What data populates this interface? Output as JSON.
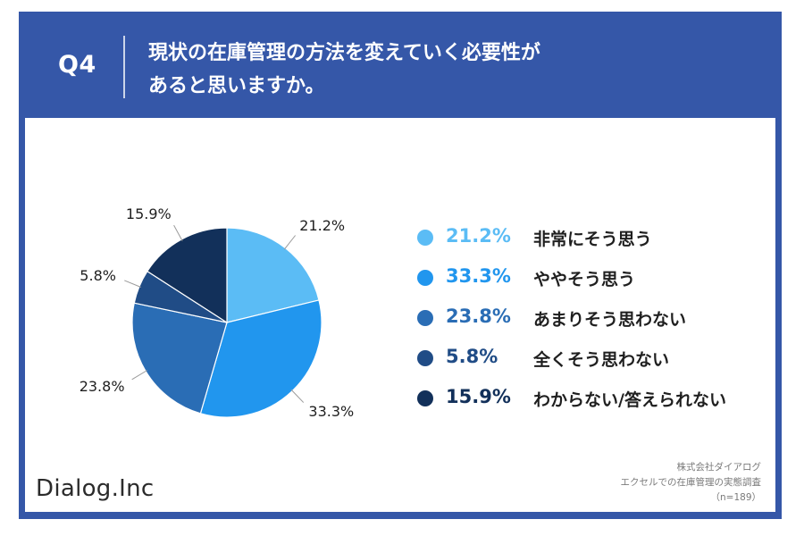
{
  "header": {
    "q_label": "Q4",
    "question_line1": "現状の在庫管理の方法を変えていく必要性が",
    "question_line2": "あると思いますか。"
  },
  "chart_data": {
    "type": "pie",
    "slices": [
      {
        "label": "非常にそう思う",
        "value": 21.2,
        "value_text": "21.2%",
        "color": "#5bbcf5"
      },
      {
        "label": "ややそう思う",
        "value": 33.3,
        "value_text": "33.3%",
        "color": "#2196ee"
      },
      {
        "label": "あまりそう思わない",
        "value": 23.8,
        "value_text": "23.8%",
        "color": "#2a6db5"
      },
      {
        "label": "全くそう思わない",
        "value": 5.8,
        "value_text": "5.8%",
        "color": "#204c86"
      },
      {
        "label": "わからない/答えられない",
        "value": 15.9,
        "value_text": "15.9%",
        "color": "#12305a"
      }
    ]
  },
  "colors": {
    "header_bg": "#3557a8",
    "label_line": "#9a9a9a"
  },
  "logo": "Dialog.Inc",
  "source": {
    "line1": "株式会社ダイアログ",
    "line2": "エクセルでの在庫管理の実態調査",
    "line3": "（n=189）"
  }
}
